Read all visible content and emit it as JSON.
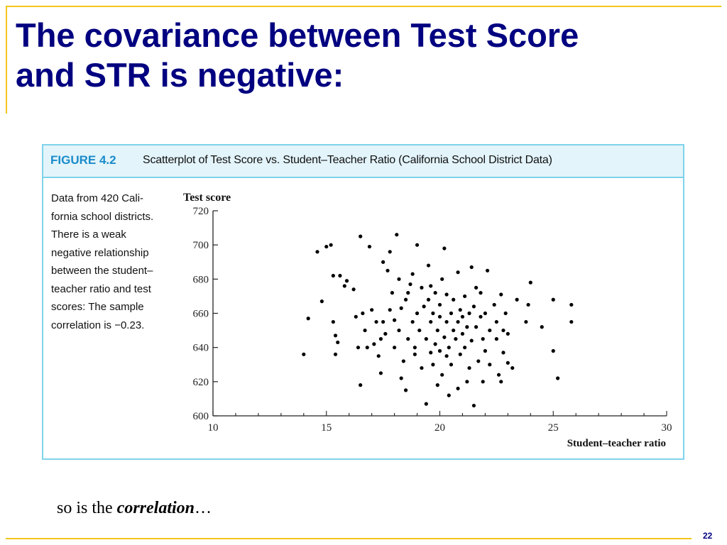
{
  "slide": {
    "title_line1": "The covariance between Test Score",
    "title_line2": "and STR is negative:",
    "footer_prefix": "so is the ",
    "footer_emphasis": "correlation",
    "footer_suffix": "…",
    "page_number": "22"
  },
  "figure": {
    "label": "FIGURE 4.2",
    "caption_title": "Scatterplot of Test Score vs. Student–Teacher Ratio (California School District Data)",
    "description": "Data from 420 California school districts. There is a weak negative relationship between the student–teacher ratio and test scores: The sample correlation is −0.23.",
    "description_lines": [
      "Data from 420 Cali-",
      "fornia school districts.",
      "There is a weak",
      "negative relationship",
      "between the student–",
      "teacher ratio and test",
      "scores: The sample",
      "correlation is −0.23."
    ]
  },
  "colors": {
    "title": "#000080",
    "rule": "#f2c51a",
    "figure_border": "#7fd3ea",
    "figure_header_bg": "#e3f4fb",
    "figure_label": "#1a8cc9",
    "points": "#000000"
  },
  "chart_data": {
    "type": "scatter",
    "xlabel": "Student–teacher ratio",
    "ylabel": "Test score",
    "xlim": [
      10,
      30
    ],
    "ylim": [
      600,
      720
    ],
    "xticks": [
      10,
      15,
      20,
      25,
      30
    ],
    "yticks": [
      600,
      620,
      640,
      660,
      680,
      700,
      720
    ],
    "grid": false,
    "correlation": -0.23,
    "n_districts": 420,
    "points_note": "Representative sample of the 420 plotted points, estimated from the figure.",
    "points": [
      [
        14.0,
        636
      ],
      [
        14.2,
        657
      ],
      [
        14.6,
        696
      ],
      [
        14.8,
        667
      ],
      [
        15.0,
        699
      ],
      [
        15.2,
        700
      ],
      [
        15.3,
        682
      ],
      [
        15.3,
        655
      ],
      [
        15.4,
        647
      ],
      [
        15.4,
        636
      ],
      [
        15.5,
        643
      ],
      [
        15.6,
        682
      ],
      [
        15.8,
        676
      ],
      [
        15.9,
        679
      ],
      [
        16.2,
        674
      ],
      [
        16.3,
        658
      ],
      [
        16.4,
        640
      ],
      [
        16.5,
        705
      ],
      [
        16.5,
        618
      ],
      [
        16.6,
        660
      ],
      [
        16.8,
        640
      ],
      [
        16.9,
        699
      ],
      [
        17.0,
        662
      ],
      [
        17.2,
        655
      ],
      [
        17.3,
        635
      ],
      [
        17.4,
        645
      ],
      [
        17.5,
        655
      ],
      [
        17.5,
        690
      ],
      [
        17.6,
        648
      ],
      [
        17.8,
        662
      ],
      [
        17.8,
        696
      ],
      [
        17.9,
        672
      ],
      [
        18.0,
        656
      ],
      [
        18.0,
        640
      ],
      [
        18.1,
        706
      ],
      [
        18.2,
        650
      ],
      [
        18.2,
        680
      ],
      [
        18.3,
        663
      ],
      [
        18.4,
        632
      ],
      [
        18.5,
        668
      ],
      [
        18.6,
        672
      ],
      [
        18.6,
        645
      ],
      [
        18.8,
        655
      ],
      [
        18.8,
        683
      ],
      [
        18.9,
        640
      ],
      [
        19.0,
        660
      ],
      [
        19.0,
        700
      ],
      [
        19.1,
        650
      ],
      [
        19.2,
        675
      ],
      [
        19.2,
        628
      ],
      [
        19.3,
        664
      ],
      [
        19.4,
        645
      ],
      [
        19.5,
        668
      ],
      [
        19.5,
        688
      ],
      [
        19.6,
        655
      ],
      [
        19.6,
        637
      ],
      [
        19.7,
        660
      ],
      [
        19.8,
        642
      ],
      [
        19.8,
        672
      ],
      [
        19.9,
        650
      ],
      [
        20.0,
        658
      ],
      [
        20.0,
        638
      ],
      [
        20.0,
        665
      ],
      [
        20.1,
        624
      ],
      [
        20.1,
        680
      ],
      [
        20.2,
        646
      ],
      [
        20.2,
        698
      ],
      [
        20.3,
        655
      ],
      [
        20.3,
        671
      ],
      [
        20.4,
        640
      ],
      [
        20.5,
        660
      ],
      [
        20.5,
        630
      ],
      [
        20.6,
        650
      ],
      [
        20.6,
        668
      ],
      [
        20.7,
        645
      ],
      [
        20.8,
        655
      ],
      [
        20.8,
        684
      ],
      [
        20.9,
        636
      ],
      [
        20.9,
        662
      ],
      [
        21.0,
        648
      ],
      [
        21.0,
        658
      ],
      [
        21.1,
        670
      ],
      [
        21.1,
        640
      ],
      [
        21.2,
        652
      ],
      [
        21.2,
        620
      ],
      [
        21.3,
        660
      ],
      [
        21.4,
        644
      ],
      [
        21.4,
        687
      ],
      [
        21.5,
        664
      ],
      [
        21.5,
        606
      ],
      [
        21.6,
        652
      ],
      [
        21.7,
        632
      ],
      [
        21.8,
        658
      ],
      [
        21.8,
        672
      ],
      [
        21.9,
        645
      ],
      [
        22.0,
        638
      ],
      [
        22.0,
        660
      ],
      [
        22.1,
        685
      ],
      [
        22.2,
        650
      ],
      [
        22.2,
        630
      ],
      [
        22.4,
        665
      ],
      [
        22.5,
        655
      ],
      [
        22.5,
        645
      ],
      [
        22.6,
        624
      ],
      [
        22.7,
        671
      ],
      [
        22.8,
        650
      ],
      [
        22.8,
        637
      ],
      [
        22.9,
        660
      ],
      [
        23.0,
        631
      ],
      [
        23.0,
        648
      ],
      [
        23.2,
        628
      ],
      [
        23.4,
        668
      ],
      [
        23.8,
        655
      ],
      [
        23.9,
        665
      ],
      [
        24.0,
        678
      ],
      [
        24.5,
        652
      ],
      [
        25.0,
        638
      ],
      [
        25.0,
        668
      ],
      [
        25.2,
        622
      ],
      [
        25.8,
        665
      ],
      [
        25.8,
        655
      ],
      [
        17.7,
        685
      ],
      [
        18.7,
        677
      ],
      [
        19.7,
        630
      ],
      [
        20.8,
        616
      ],
      [
        21.9,
        620
      ],
      [
        17.4,
        625
      ],
      [
        18.5,
        615
      ],
      [
        19.4,
        607
      ],
      [
        20.4,
        612
      ],
      [
        18.3,
        622
      ],
      [
        19.9,
        618
      ],
      [
        21.3,
        628
      ],
      [
        22.7,
        620
      ],
      [
        16.7,
        650
      ],
      [
        17.1,
        642
      ],
      [
        19.6,
        676
      ],
      [
        20.3,
        635
      ],
      [
        21.6,
        675
      ],
      [
        18.9,
        636
      ]
    ]
  }
}
